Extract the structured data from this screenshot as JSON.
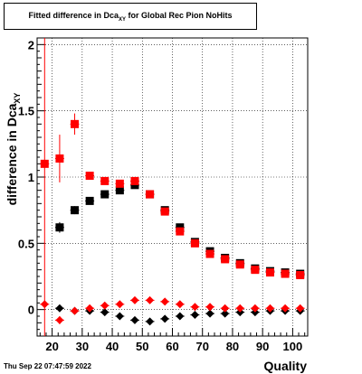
{
  "title": {
    "main": "Fitted difference in Dca",
    "sub": "XY",
    "rest": " for Global Rec Pion NoHits"
  },
  "timestamp": "Thu Sep 22 07:47:59 2022",
  "chart_data": {
    "type": "scatter",
    "title": "Fitted difference in Dca_XY for Global Rec Pion NoHits",
    "xlabel": "Quality",
    "ylabel": "difference in Dca",
    "ylabel_sub": "XY",
    "xlim": [
      15,
      105
    ],
    "ylim": [
      -0.2,
      2.05
    ],
    "xticks": [
      20,
      30,
      40,
      50,
      60,
      70,
      80,
      90,
      100
    ],
    "yticks": [
      0,
      0.5,
      1,
      1.5,
      2
    ],
    "ytick_labels": [
      "0",
      "0.5",
      "1",
      "1.5",
      "2"
    ],
    "grid": true,
    "series": [
      {
        "marker": "square",
        "color": "#000000",
        "points": [
          {
            "x": 22.5,
            "y": 0.62,
            "xerr": 1.5,
            "yerr": 0.04
          },
          {
            "x": 27.5,
            "y": 0.75,
            "xerr": 1.5,
            "yerr": 0.03
          },
          {
            "x": 32.5,
            "y": 0.82,
            "xerr": 1.5,
            "yerr": 0.02
          },
          {
            "x": 37.5,
            "y": 0.87,
            "xerr": 1.5,
            "yerr": 0.02
          },
          {
            "x": 42.5,
            "y": 0.9,
            "xerr": 1.5,
            "yerr": 0.02
          },
          {
            "x": 47.5,
            "y": 0.94,
            "xerr": 1.5,
            "yerr": 0.02
          },
          {
            "x": 52.5,
            "y": 0.87,
            "xerr": 1.5,
            "yerr": 0.01
          },
          {
            "x": 57.5,
            "y": 0.75,
            "xerr": 1.5,
            "yerr": 0.01
          },
          {
            "x": 62.5,
            "y": 0.62,
            "xerr": 1.5,
            "yerr": 0.01
          },
          {
            "x": 67.5,
            "y": 0.51,
            "xerr": 1.5,
            "yerr": 0.01
          },
          {
            "x": 72.5,
            "y": 0.44,
            "xerr": 1.5,
            "yerr": 0.01
          },
          {
            "x": 77.5,
            "y": 0.39,
            "xerr": 1.5,
            "yerr": 0.01
          },
          {
            "x": 82.5,
            "y": 0.35,
            "xerr": 1.5,
            "yerr": 0.01
          },
          {
            "x": 87.5,
            "y": 0.31,
            "xerr": 1.5,
            "yerr": 0.01
          },
          {
            "x": 92.5,
            "y": 0.29,
            "xerr": 1.5,
            "yerr": 0.01
          },
          {
            "x": 97.5,
            "y": 0.28,
            "xerr": 1.5,
            "yerr": 0.01
          },
          {
            "x": 102.5,
            "y": 0.27,
            "xerr": 1.5,
            "yerr": 0.01
          }
        ]
      },
      {
        "marker": "square",
        "color": "#ff0000",
        "points": [
          {
            "x": 17.5,
            "y": 1.1,
            "xerr": 1.5,
            "yerr": 1.3
          },
          {
            "x": 22.5,
            "y": 1.14,
            "xerr": 1.5,
            "yerr": 0.18
          },
          {
            "x": 27.5,
            "y": 1.4,
            "xerr": 1.5,
            "yerr": 0.08
          },
          {
            "x": 32.5,
            "y": 1.01,
            "xerr": 1.5,
            "yerr": 0.03
          },
          {
            "x": 37.5,
            "y": 0.97,
            "xerr": 1.5,
            "yerr": 0.02
          },
          {
            "x": 42.5,
            "y": 0.95,
            "xerr": 1.5,
            "yerr": 0.02
          },
          {
            "x": 47.5,
            "y": 0.97,
            "xerr": 1.5,
            "yerr": 0.02
          },
          {
            "x": 52.5,
            "y": 0.87,
            "xerr": 1.5,
            "yerr": 0.01
          },
          {
            "x": 57.5,
            "y": 0.74,
            "xerr": 1.5,
            "yerr": 0.01
          },
          {
            "x": 62.5,
            "y": 0.59,
            "xerr": 1.5,
            "yerr": 0.01
          },
          {
            "x": 67.5,
            "y": 0.5,
            "xerr": 1.5,
            "yerr": 0.01
          },
          {
            "x": 72.5,
            "y": 0.42,
            "xerr": 1.5,
            "yerr": 0.01
          },
          {
            "x": 77.5,
            "y": 0.38,
            "xerr": 1.5,
            "yerr": 0.01
          },
          {
            "x": 82.5,
            "y": 0.34,
            "xerr": 1.5,
            "yerr": 0.01
          },
          {
            "x": 87.5,
            "y": 0.3,
            "xerr": 1.5,
            "yerr": 0.01
          },
          {
            "x": 92.5,
            "y": 0.28,
            "xerr": 1.5,
            "yerr": 0.01
          },
          {
            "x": 97.5,
            "y": 0.27,
            "xerr": 1.5,
            "yerr": 0.01
          },
          {
            "x": 102.5,
            "y": 0.26,
            "xerr": 1.5,
            "yerr": 0.01
          }
        ]
      },
      {
        "marker": "diamond",
        "color": "#000000",
        "points": [
          {
            "x": 22.5,
            "y": 0.01,
            "xerr": 1.5,
            "yerr": 0.02
          },
          {
            "x": 27.5,
            "y": -0.01,
            "xerr": 1.5,
            "yerr": 0.02
          },
          {
            "x": 32.5,
            "y": -0.01,
            "xerr": 1.5,
            "yerr": 0.01
          },
          {
            "x": 37.5,
            "y": -0.02,
            "xerr": 1.5,
            "yerr": 0.01
          },
          {
            "x": 42.5,
            "y": -0.05,
            "xerr": 1.5,
            "yerr": 0.01
          },
          {
            "x": 47.5,
            "y": -0.08,
            "xerr": 1.5,
            "yerr": 0.01
          },
          {
            "x": 52.5,
            "y": -0.09,
            "xerr": 1.5,
            "yerr": 0.01
          },
          {
            "x": 57.5,
            "y": -0.07,
            "xerr": 1.5,
            "yerr": 0.01
          },
          {
            "x": 62.5,
            "y": -0.05,
            "xerr": 1.5,
            "yerr": 0.01
          },
          {
            "x": 67.5,
            "y": -0.04,
            "xerr": 1.5,
            "yerr": 0.01
          },
          {
            "x": 72.5,
            "y": -0.03,
            "xerr": 1.5,
            "yerr": 0.01
          },
          {
            "x": 77.5,
            "y": -0.03,
            "xerr": 1.5,
            "yerr": 0.01
          },
          {
            "x": 82.5,
            "y": -0.02,
            "xerr": 1.5,
            "yerr": 0.01
          },
          {
            "x": 87.5,
            "y": -0.02,
            "xerr": 1.5,
            "yerr": 0.01
          },
          {
            "x": 92.5,
            "y": -0.01,
            "xerr": 1.5,
            "yerr": 0.01
          },
          {
            "x": 97.5,
            "y": -0.01,
            "xerr": 1.5,
            "yerr": 0.01
          },
          {
            "x": 102.5,
            "y": -0.01,
            "xerr": 1.5,
            "yerr": 0.01
          }
        ]
      },
      {
        "marker": "diamond",
        "color": "#ff0000",
        "points": [
          {
            "x": 17.5,
            "y": 0.04,
            "xerr": 1.5,
            "yerr": 0.02
          },
          {
            "x": 22.5,
            "y": -0.08,
            "xerr": 1.5,
            "yerr": 0.03
          },
          {
            "x": 27.5,
            "y": -0.01,
            "xerr": 1.5,
            "yerr": 0.02
          },
          {
            "x": 32.5,
            "y": 0.01,
            "xerr": 1.5,
            "yerr": 0.01
          },
          {
            "x": 37.5,
            "y": 0.03,
            "xerr": 1.5,
            "yerr": 0.01
          },
          {
            "x": 42.5,
            "y": 0.04,
            "xerr": 1.5,
            "yerr": 0.01
          },
          {
            "x": 47.5,
            "y": 0.07,
            "xerr": 1.5,
            "yerr": 0.01
          },
          {
            "x": 52.5,
            "y": 0.07,
            "xerr": 1.5,
            "yerr": 0.01
          },
          {
            "x": 57.5,
            "y": 0.06,
            "xerr": 1.5,
            "yerr": 0.01
          },
          {
            "x": 62.5,
            "y": 0.04,
            "xerr": 1.5,
            "yerr": 0.01
          },
          {
            "x": 67.5,
            "y": 0.02,
            "xerr": 1.5,
            "yerr": 0.01
          },
          {
            "x": 72.5,
            "y": 0.02,
            "xerr": 1.5,
            "yerr": 0.01
          },
          {
            "x": 77.5,
            "y": 0.01,
            "xerr": 1.5,
            "yerr": 0.01
          },
          {
            "x": 82.5,
            "y": 0.01,
            "xerr": 1.5,
            "yerr": 0.01
          },
          {
            "x": 87.5,
            "y": 0.01,
            "xerr": 1.5,
            "yerr": 0.01
          },
          {
            "x": 92.5,
            "y": 0.01,
            "xerr": 1.5,
            "yerr": 0.01
          },
          {
            "x": 97.5,
            "y": 0.01,
            "xerr": 1.5,
            "yerr": 0.01
          },
          {
            "x": 102.5,
            "y": 0.01,
            "xerr": 1.5,
            "yerr": 0.01
          }
        ]
      }
    ]
  }
}
